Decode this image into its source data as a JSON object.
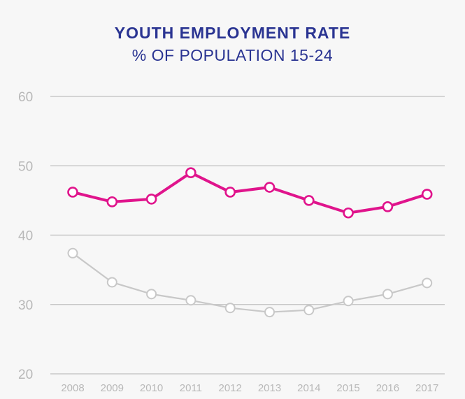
{
  "chart_data": {
    "type": "line",
    "title": "YOUTH EMPLOYMENT RATE",
    "subtitle": "% OF POPULATION 15-24",
    "x": [
      "2008",
      "2009",
      "2010",
      "2011",
      "2012",
      "2013",
      "2014",
      "2015",
      "2016",
      "2017"
    ],
    "yticks": [
      "20",
      "30",
      "40",
      "50",
      "60"
    ],
    "ylim": [
      20,
      60
    ],
    "grid": true,
    "series": [
      {
        "color": "#e0148c",
        "values": [
          46.2,
          44.8,
          45.2,
          49.0,
          46.2,
          46.9,
          45.0,
          43.2,
          44.1,
          45.9
        ]
      },
      {
        "color": "#c8c8c8",
        "values": [
          37.4,
          33.2,
          31.5,
          30.6,
          29.5,
          28.9,
          29.2,
          30.5,
          31.5,
          33.1
        ]
      }
    ]
  },
  "colors": {
    "background": "#f7f7f7",
    "title": "#2a3492",
    "grid": "#c8c8c8",
    "tick": "#b8b8b8"
  }
}
